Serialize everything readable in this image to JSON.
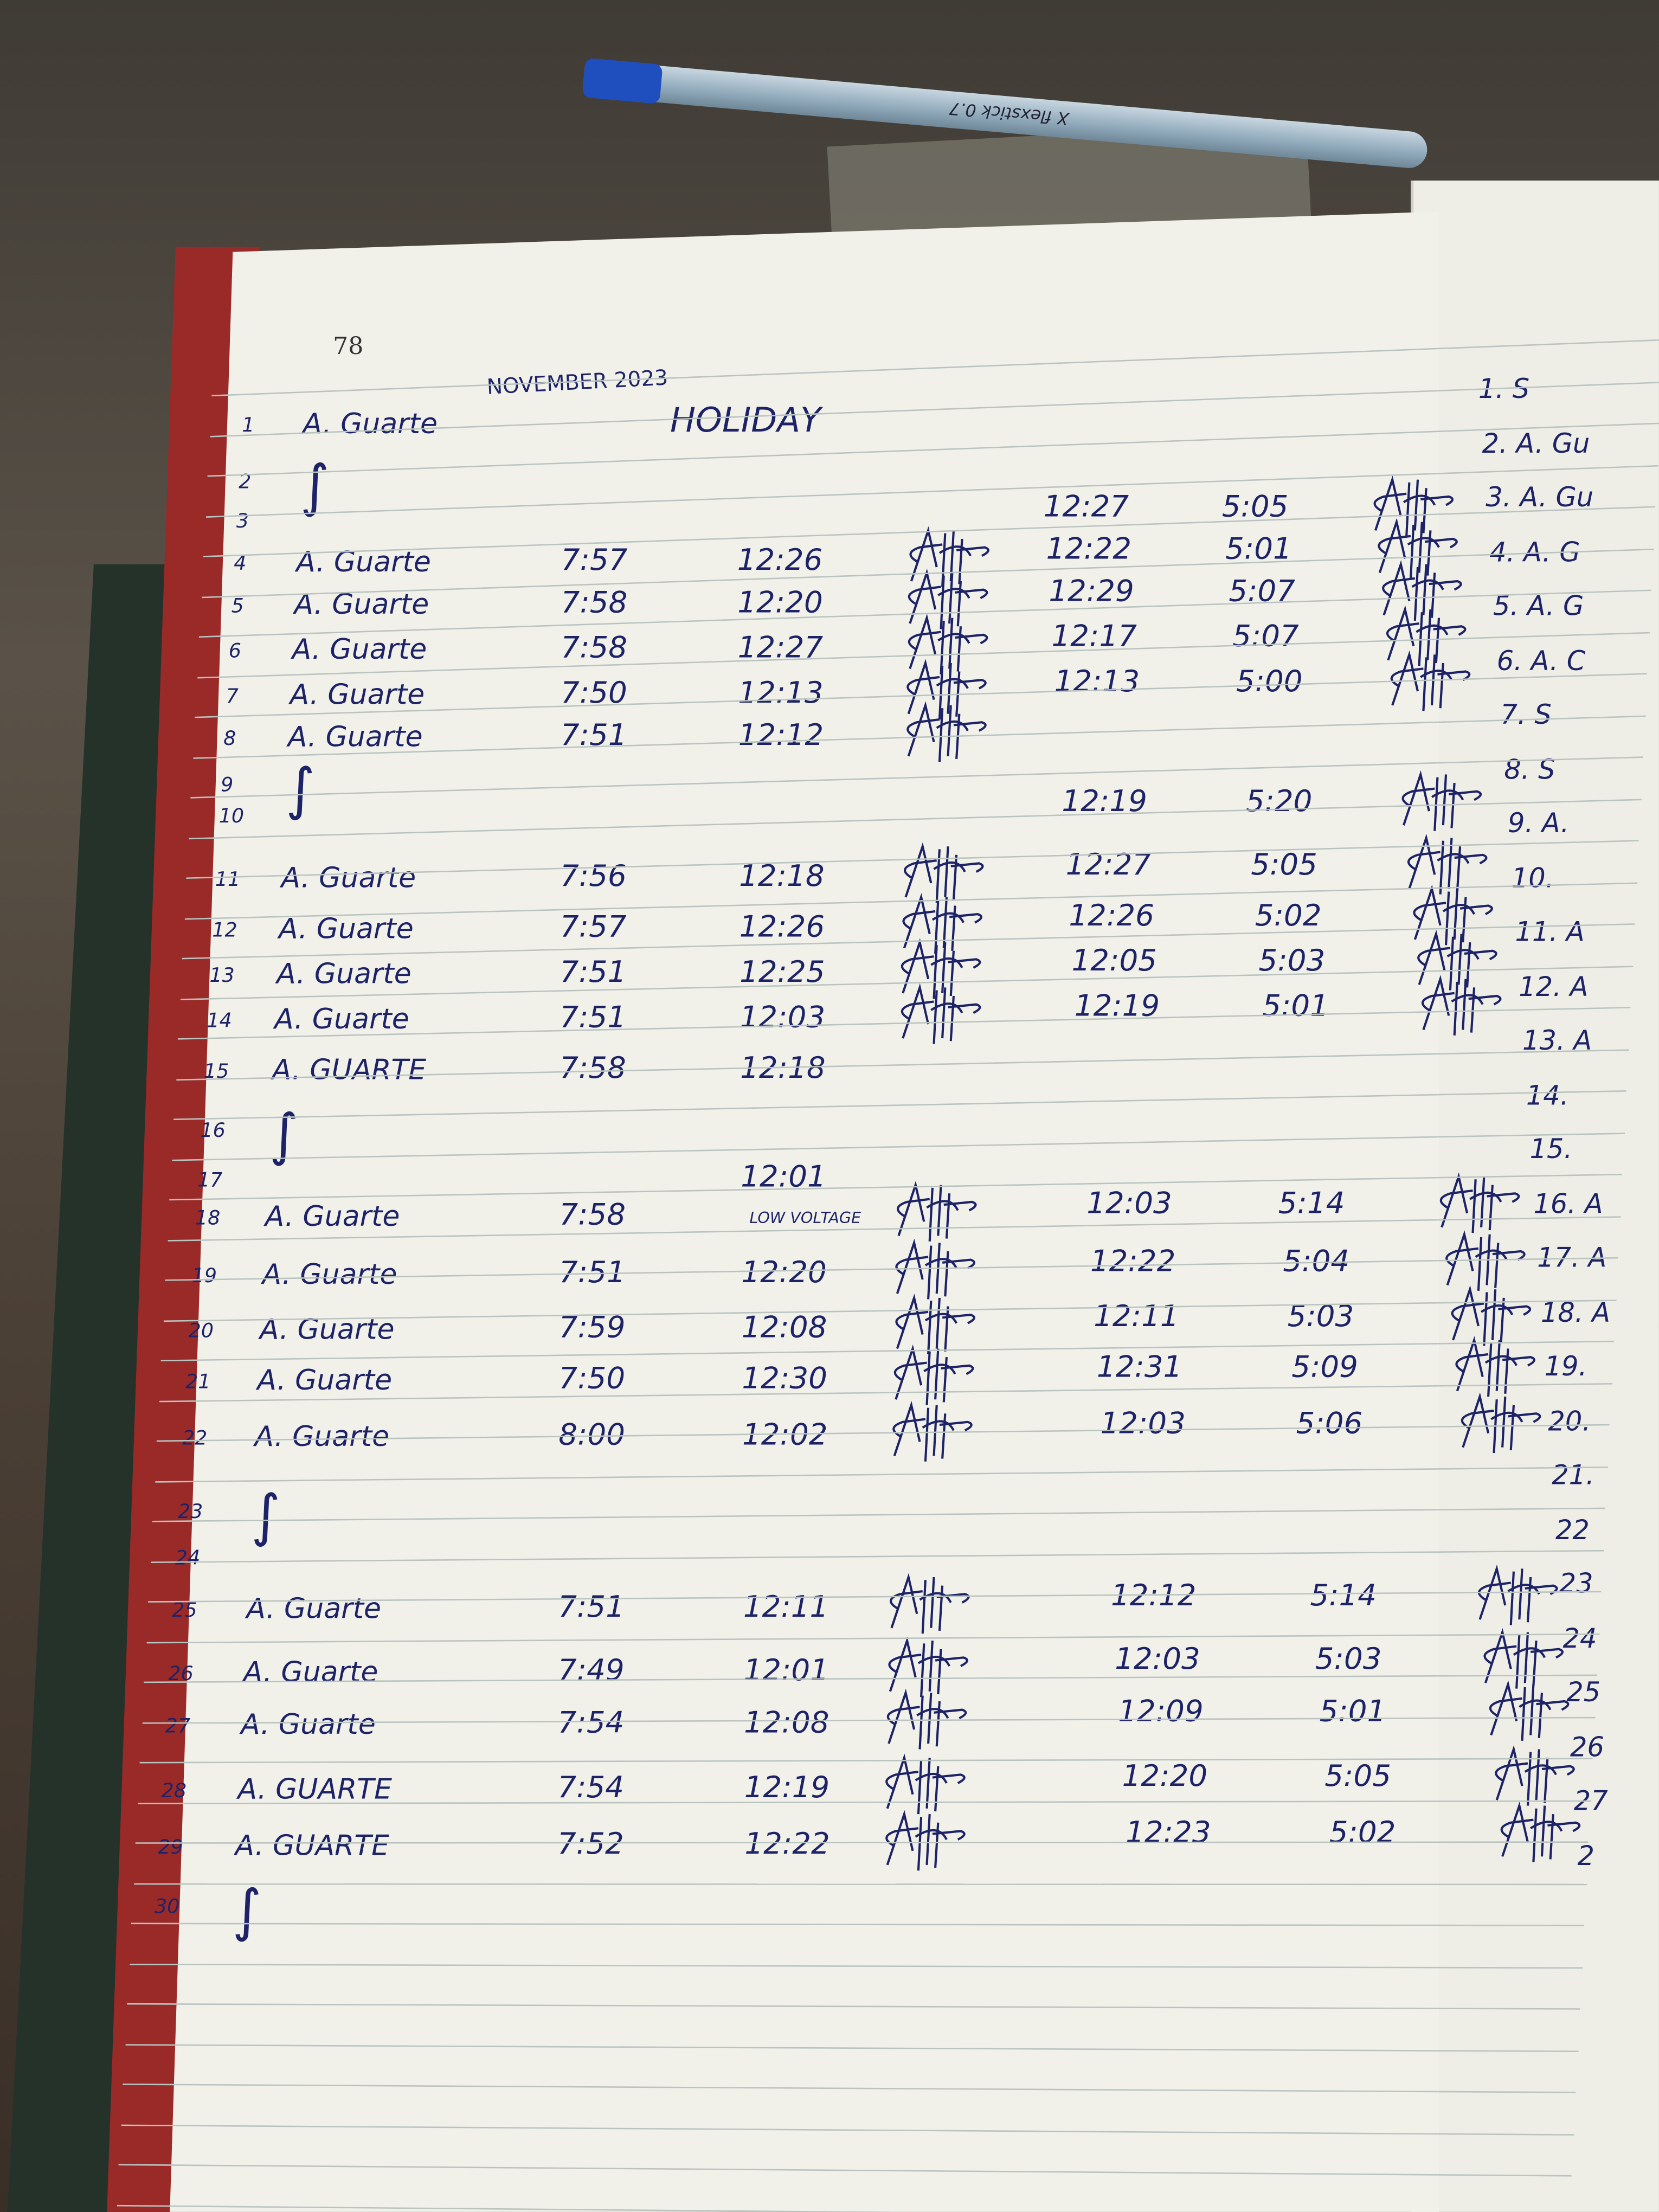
{
  "page_number": "78",
  "heading": "NOVEMBER 2023",
  "pen_brand": "X flexstick 0.7",
  "ink_color": "#1d2366",
  "rows": [
    {
      "day": "1",
      "name": "A. Guarte",
      "time_in": "HOLIDAY"
    },
    {
      "day": "2",
      "mark": "∫"
    },
    {
      "day": "3",
      "in_pm": "12:27",
      "out_pm": "5:05",
      "signed_pm": true
    },
    {
      "day": "4",
      "name": "A. Guarte",
      "time_in": "7:57",
      "out_am": "12:26",
      "signed_am": true,
      "in_pm": "12:22",
      "out_pm": "5:01",
      "signed_pm": true
    },
    {
      "day": "5",
      "name": "A. Guarte",
      "time_in": "7:58",
      "out_am": "12:20",
      "signed_am": true,
      "in_pm": "12:29",
      "out_pm": "5:07",
      "signed_pm": true
    },
    {
      "day": "6",
      "name": "A. Guarte",
      "time_in": "7:58",
      "out_am": "12:27",
      "signed_am": true,
      "in_pm": "12:17",
      "out_pm": "5:07",
      "signed_pm": true
    },
    {
      "day": "7",
      "name": "A. Guarte",
      "time_in": "7:50",
      "out_am": "12:13",
      "signed_am": true,
      "in_pm": "12:13",
      "out_pm": "5:00",
      "signed_pm": true
    },
    {
      "day": "8",
      "name": "A. Guarte",
      "time_in": "7:51",
      "out_am": "12:12",
      "signed_am": true
    },
    {
      "day": "9",
      "mark": "∫"
    },
    {
      "day": "10",
      "in_pm": "12:19",
      "out_pm": "5:20",
      "signed_pm": true
    },
    {
      "day": "11",
      "name": "A. Guarte",
      "time_in": "7:56",
      "out_am": "12:18",
      "signed_am": true,
      "in_pm": "12:27",
      "out_pm": "5:05",
      "signed_pm": true
    },
    {
      "day": "12",
      "name": "A. Guarte",
      "time_in": "7:57",
      "out_am": "12:26",
      "signed_am": true,
      "in_pm": "12:26",
      "out_pm": "5:02",
      "signed_pm": true
    },
    {
      "day": "13",
      "name": "A. Guarte",
      "time_in": "7:51",
      "out_am": "12:25",
      "signed_am": true,
      "in_pm": "12:05",
      "out_pm": "5:03",
      "signed_pm": true
    },
    {
      "day": "14",
      "name": "A. Guarte",
      "time_in": "7:51",
      "out_am": "12:03",
      "signed_am": true,
      "in_pm": "12:19",
      "out_pm": "5:01",
      "signed_pm": true
    },
    {
      "day": "15",
      "name": "A. GUARTE",
      "time_in": "7:58",
      "out_am": "12:18"
    },
    {
      "day": "16",
      "mark": "∫"
    },
    {
      "day": "17",
      "out_am": "12:01"
    },
    {
      "day": "18",
      "name": "A. Guarte",
      "time_in": "7:58",
      "out_am": "LOW VOLTAGE",
      "signed_am": true,
      "in_pm": "12:03",
      "out_pm": "5:14",
      "signed_pm": true
    },
    {
      "day": "19",
      "name": "A. Guarte",
      "time_in": "7:51",
      "out_am": "12:20",
      "signed_am": true,
      "in_pm": "12:22",
      "out_pm": "5:04",
      "signed_pm": true
    },
    {
      "day": "20",
      "name": "A. Guarte",
      "time_in": "7:59",
      "out_am": "12:08",
      "signed_am": true,
      "in_pm": "12:11",
      "out_pm": "5:03",
      "signed_pm": true
    },
    {
      "day": "21",
      "name": "A. Guarte",
      "time_in": "7:50",
      "out_am": "12:30",
      "signed_am": true,
      "in_pm": "12:31",
      "out_pm": "5:09",
      "signed_pm": true
    },
    {
      "day": "22",
      "name": "A. Guarte",
      "time_in": "8:00",
      "out_am": "12:02",
      "signed_am": true,
      "in_pm": "12:03",
      "out_pm": "5:06",
      "signed_pm": true
    },
    {
      "day": "23",
      "mark": "∫"
    },
    {
      "day": "24"
    },
    {
      "day": "25",
      "name": "A. Guarte",
      "time_in": "7:51",
      "out_am": "12:11",
      "signed_am": true,
      "in_pm": "12:12",
      "out_pm": "5:14",
      "signed_pm": true
    },
    {
      "day": "26",
      "name": "A. Guarte",
      "time_in": "7:49",
      "out_am": "12:01",
      "signed_am": true,
      "in_pm": "12:03",
      "out_pm": "5:03",
      "signed_pm": true
    },
    {
      "day": "27",
      "name": "A. Guarte",
      "time_in": "7:54",
      "out_am": "12:08",
      "signed_am": true,
      "in_pm": "12:09",
      "out_pm": "5:01",
      "signed_pm": true
    },
    {
      "day": "28",
      "name": "A. GUARTE",
      "time_in": "7:54",
      "out_am": "12:19",
      "signed_am": true,
      "in_pm": "12:20",
      "out_pm": "5:05",
      "signed_pm": true
    },
    {
      "day": "29",
      "name": "A. GUARTE",
      "time_in": "7:52",
      "out_am": "12:22",
      "signed_am": true,
      "in_pm": "12:23",
      "out_pm": "5:02",
      "signed_pm": true
    },
    {
      "day": "30",
      "mark": "∫"
    }
  ],
  "right_page": [
    "1. S",
    "2. A. Gu",
    "3. A. Gu",
    "4. A. G",
    "5. A. G",
    "6. A. C",
    "7. S",
    "8. S",
    "9. A.",
    "10.",
    "11. A",
    "12. A",
    "13. A",
    "14.",
    "15.",
    "16. A",
    "17. A",
    "18. A",
    "19.",
    "20.",
    "21.",
    "22",
    "23",
    "24",
    "25",
    "26",
    "27",
    "2"
  ]
}
